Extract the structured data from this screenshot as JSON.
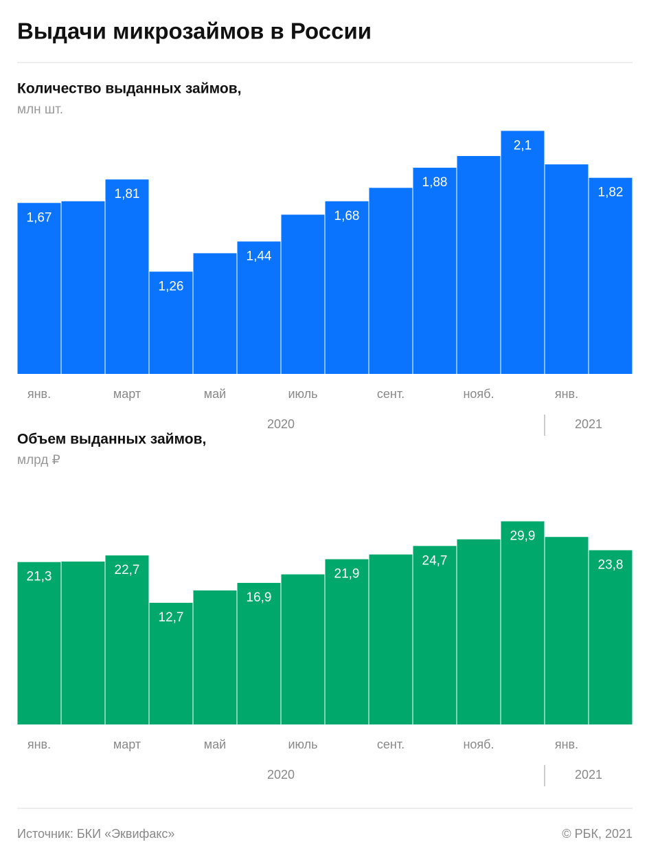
{
  "title": "Выдачи микрозаймов в России",
  "chart_data": [
    {
      "type": "bar",
      "title": "Количество выданных займов,",
      "subtitle": "млн шт.",
      "categories": [
        "янв.",
        null,
        "март",
        null,
        "май",
        null,
        "июль",
        null,
        "сент.",
        null,
        "нояб.",
        null,
        "янв.",
        null
      ],
      "years": [
        "2020",
        "2021"
      ],
      "values": [
        1.67,
        1.68,
        1.81,
        1.26,
        1.37,
        1.44,
        1.6,
        1.68,
        1.76,
        1.88,
        1.95,
        2.1,
        1.9,
        1.82
      ],
      "value_labels": [
        "1,67",
        null,
        "1,81",
        "1,26",
        null,
        "1,44",
        null,
        "1,68",
        null,
        "1,88",
        null,
        "2,1",
        null,
        "1,82"
      ],
      "color": "#0a74ff",
      "ylim": [
        0.65,
        2.2
      ]
    },
    {
      "type": "bar",
      "title": "Объем выданных займов,",
      "subtitle": "млрд ₽",
      "categories": [
        "янв.",
        null,
        "март",
        null,
        "май",
        null,
        "июль",
        null,
        "сент.",
        null,
        "нояб.",
        null,
        "янв.",
        null
      ],
      "years": [
        "2020",
        "2021"
      ],
      "values": [
        21.3,
        21.4,
        22.7,
        12.7,
        15.3,
        16.9,
        18.7,
        21.9,
        22.9,
        24.7,
        26.1,
        29.9,
        26.6,
        23.8
      ],
      "value_labels": [
        "21,3",
        null,
        "22,7",
        "12,7",
        null,
        "16,9",
        null,
        "21,9",
        null,
        "24,7",
        null,
        "29,9",
        null,
        "23,8"
      ],
      "color": "#00a96b",
      "ylim": [
        -13,
        32
      ]
    }
  ],
  "footer": {
    "source": "Источник: БКИ «Эквифакс»",
    "credit": "© РБК, 2021"
  }
}
